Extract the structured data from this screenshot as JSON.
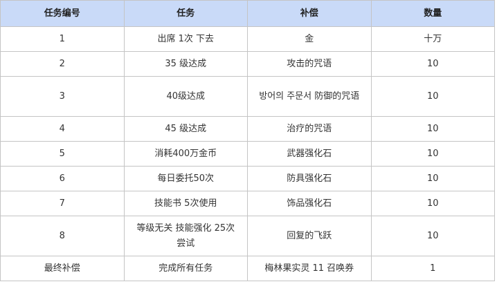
{
  "headers": [
    "任务编号",
    "任务",
    "补偿",
    "数量"
  ],
  "rows": [
    [
      "1",
      "出席 1次 下去",
      "金",
      "十万"
    ],
    [
      "2",
      "35 级达成",
      "攻击的咒语",
      "10"
    ],
    [
      "3",
      "40级达成",
      "방어의 주문서 防御的咒语",
      "10"
    ],
    [
      "4",
      "45 级达成",
      "治疗的咒语",
      "10"
    ],
    [
      "5",
      "消耗400万金币",
      "武器强化石",
      "10"
    ],
    [
      "6",
      "每日委托50次",
      "防具强化石",
      "10"
    ],
    [
      "7",
      "技能书 5次使用",
      "饰品强化石",
      "10"
    ],
    [
      "8",
      "等级无关 技能强化 25次尝试",
      "回复的飞跃",
      "10"
    ],
    [
      "最终补偿",
      "完成所有任务",
      "梅林果实灵 11 召唤券",
      "1"
    ]
  ],
  "colors": {
    "header_bg": "#c9daf8",
    "border": "#c4c4c4"
  }
}
